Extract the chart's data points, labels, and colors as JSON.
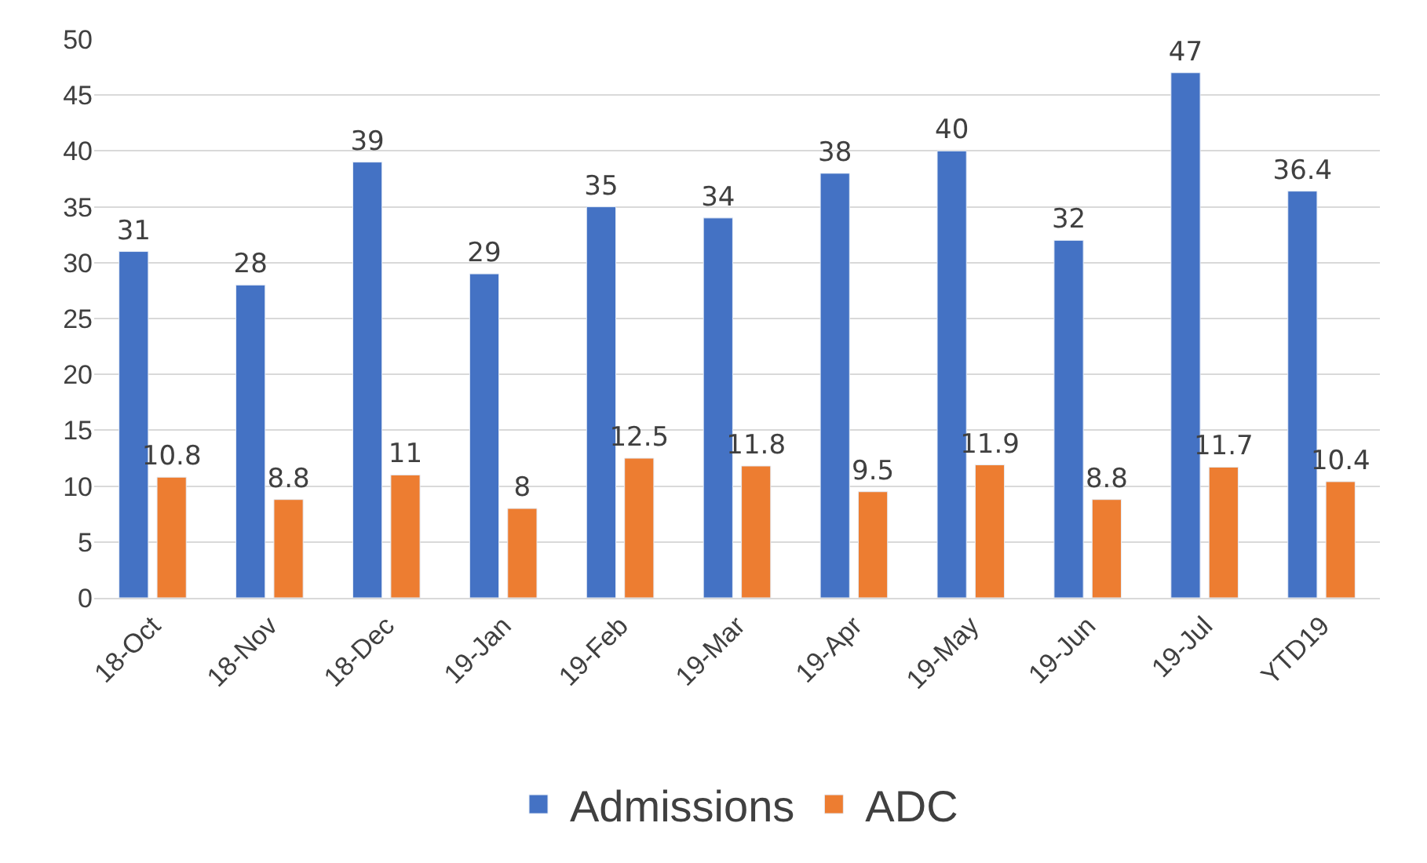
{
  "chart_data": {
    "type": "bar",
    "categories": [
      "18-Oct",
      "18-Nov",
      "18-Dec",
      "19-Jan",
      "19-Feb",
      "19-Mar",
      "19-Apr",
      "19-May",
      "19-Jun",
      "19-Jul",
      "YTD19"
    ],
    "series": [
      {
        "name": "Admissions",
        "color": "#4472c4",
        "values": [
          31,
          28,
          39,
          29,
          35,
          34,
          38,
          40,
          32,
          47,
          36.4
        ]
      },
      {
        "name": "ADC",
        "color": "#ed7d31",
        "values": [
          10.8,
          8.8,
          11,
          8,
          12.5,
          11.8,
          9.5,
          11.9,
          8.8,
          11.7,
          10.4
        ]
      }
    ],
    "ylim": [
      0,
      50
    ],
    "yticks": [
      0,
      5,
      10,
      15,
      20,
      25,
      30,
      35,
      40,
      45,
      50
    ],
    "grid": "y",
    "legend": "bottom",
    "data_labels": true
  }
}
